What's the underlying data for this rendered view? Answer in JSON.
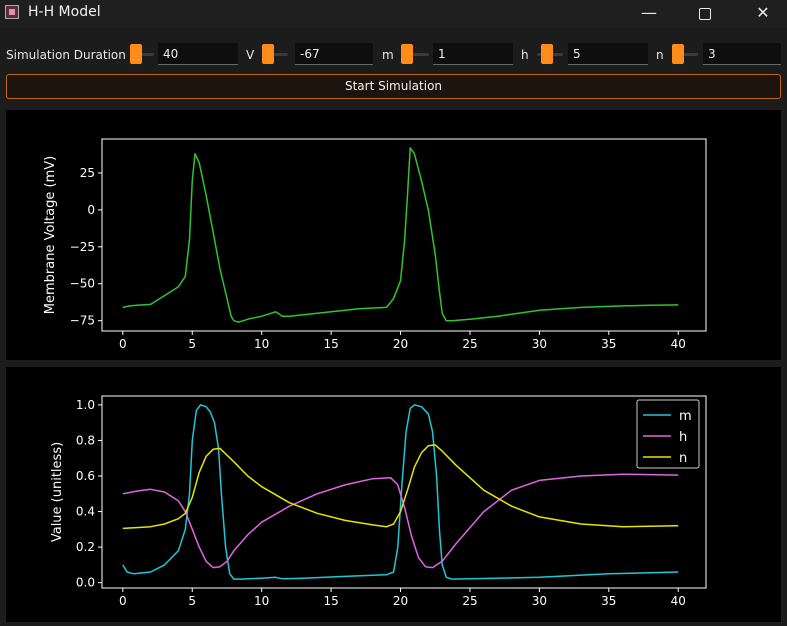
{
  "window": {
    "title": "H-H Model",
    "icon": "app-icon",
    "min_glyph": "—",
    "close_glyph": "✕"
  },
  "controls": {
    "duration": {
      "label": "Simulation Duration",
      "value": "40"
    },
    "v": {
      "label": "V",
      "value": "-67"
    },
    "m": {
      "label": "m",
      "value": "1"
    },
    "h": {
      "label": "h",
      "value": "5"
    },
    "n": {
      "label": "n",
      "value": "3"
    }
  },
  "start_button": "Start Simulation",
  "colors": {
    "accent": "#ff8c1a",
    "voltage": "#2ec52e",
    "m": "#1ec8d8",
    "h": "#e066e0",
    "n": "#e6e600"
  },
  "chart_data": [
    {
      "type": "line",
      "ylabel": "Membrane Voltage (mV)",
      "xlabel": "",
      "xlim": [
        -1.5,
        42
      ],
      "ylim": [
        -82,
        48
      ],
      "xticks": [
        0,
        5,
        10,
        15,
        20,
        25,
        30,
        35,
        40
      ],
      "yticks": [
        25,
        0,
        -25,
        -50,
        -75
      ],
      "series": [
        {
          "color": "#2ec52e",
          "x": [
            0,
            0.5,
            1,
            2,
            3,
            4,
            4.5,
            4.8,
            5,
            5.2,
            5.5,
            6,
            6.5,
            7,
            7.5,
            7.8,
            8,
            8.3,
            8.7,
            9,
            10,
            11,
            11.5,
            12,
            13,
            15,
            17,
            19,
            19.5,
            20,
            20.3,
            20.5,
            20.7,
            21,
            21.5,
            22,
            22.5,
            22.8,
            23,
            23.3,
            23.7,
            25,
            27,
            30,
            33,
            36,
            38,
            40
          ],
          "y": [
            -66,
            -65,
            -64.5,
            -64,
            -58,
            -52,
            -45,
            -20,
            20,
            38,
            32,
            10,
            -15,
            -40,
            -60,
            -72,
            -75,
            -76,
            -75,
            -74,
            -72,
            -69,
            -72,
            -72,
            -71,
            -69,
            -67,
            -66,
            -60,
            -48,
            -20,
            10,
            42,
            38,
            20,
            0,
            -30,
            -55,
            -70,
            -75,
            -75,
            -74,
            -72,
            -68,
            -66,
            -65,
            -64.5,
            -64.3
          ]
        }
      ]
    },
    {
      "type": "line",
      "ylabel": "Value (unitless)",
      "xlabel": "",
      "xlim": [
        -1.5,
        42
      ],
      "ylim": [
        -0.03,
        1.05
      ],
      "xticks": [
        0,
        5,
        10,
        15,
        20,
        25,
        30,
        35,
        40
      ],
      "yticks": [
        1.0,
        0.8,
        0.6,
        0.4,
        0.2,
        0.0
      ],
      "legend": "top-right",
      "series": [
        {
          "name": "m",
          "color": "#1ec8d8",
          "x": [
            0,
            0.3,
            0.8,
            2,
            3,
            4,
            4.5,
            4.8,
            5,
            5.3,
            5.6,
            6,
            6.3,
            6.6,
            6.9,
            7.1,
            7.4,
            7.7,
            8,
            8.5,
            10,
            11,
            11.5,
            13,
            16,
            19,
            19.5,
            19.8,
            20.1,
            20.4,
            20.7,
            21,
            21.5,
            22,
            22.3,
            22.6,
            22.8,
            23,
            23.3,
            23.7,
            25,
            30,
            35,
            40
          ],
          "y": [
            0.1,
            0.06,
            0.05,
            0.06,
            0.1,
            0.18,
            0.3,
            0.5,
            0.8,
            0.97,
            1.0,
            0.99,
            0.96,
            0.9,
            0.75,
            0.5,
            0.2,
            0.05,
            0.02,
            0.02,
            0.025,
            0.03,
            0.022,
            0.025,
            0.035,
            0.045,
            0.06,
            0.2,
            0.55,
            0.85,
            0.98,
            1.0,
            0.99,
            0.95,
            0.85,
            0.6,
            0.3,
            0.1,
            0.03,
            0.02,
            0.022,
            0.03,
            0.05,
            0.06
          ]
        },
        {
          "name": "h",
          "color": "#e066e0",
          "x": [
            0,
            1,
            2,
            3,
            4,
            4.5,
            5,
            5.5,
            6,
            6.5,
            7,
            7.5,
            8,
            9,
            10,
            12,
            14,
            16,
            18,
            19.3,
            19.8,
            20.3,
            20.8,
            21.3,
            21.8,
            22.3,
            23,
            24,
            26,
            28,
            30,
            33,
            36,
            40
          ],
          "y": [
            0.5,
            0.515,
            0.525,
            0.51,
            0.46,
            0.4,
            0.3,
            0.2,
            0.12,
            0.085,
            0.09,
            0.12,
            0.18,
            0.27,
            0.34,
            0.43,
            0.5,
            0.55,
            0.585,
            0.59,
            0.55,
            0.42,
            0.26,
            0.14,
            0.09,
            0.085,
            0.12,
            0.22,
            0.4,
            0.52,
            0.575,
            0.6,
            0.61,
            0.605
          ]
        },
        {
          "name": "n",
          "color": "#e6e600",
          "x": [
            0,
            1,
            2,
            3,
            4,
            4.5,
            5,
            5.5,
            6,
            6.5,
            7,
            8,
            9,
            10,
            12,
            14,
            16,
            18,
            19,
            19.5,
            20,
            20.5,
            21,
            21.5,
            22,
            22.5,
            23,
            24,
            26,
            28,
            30,
            33,
            36,
            40
          ],
          "y": [
            0.305,
            0.31,
            0.315,
            0.33,
            0.36,
            0.39,
            0.48,
            0.62,
            0.71,
            0.75,
            0.755,
            0.68,
            0.6,
            0.54,
            0.45,
            0.39,
            0.35,
            0.325,
            0.315,
            0.33,
            0.4,
            0.52,
            0.65,
            0.73,
            0.77,
            0.775,
            0.74,
            0.66,
            0.52,
            0.43,
            0.37,
            0.33,
            0.315,
            0.32
          ]
        }
      ]
    }
  ]
}
